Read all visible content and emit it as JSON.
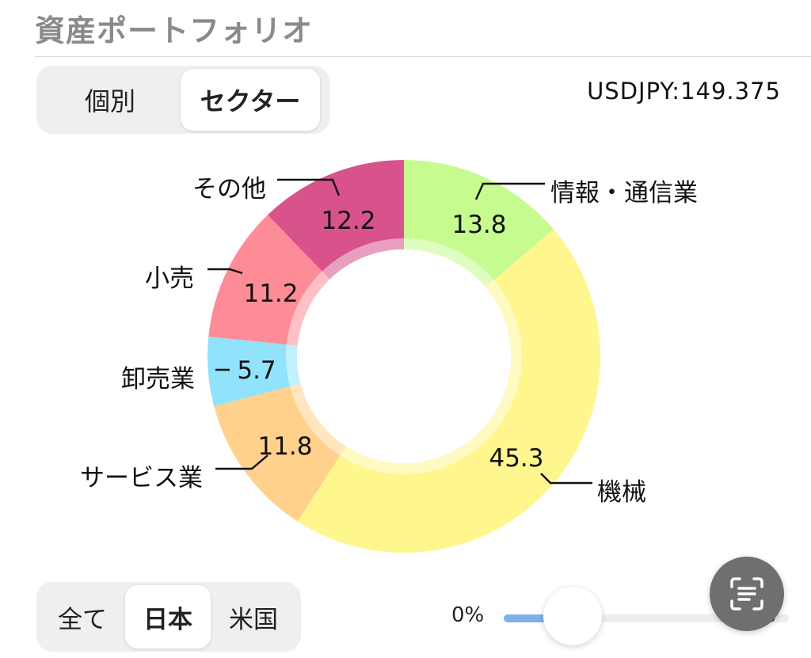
{
  "header": {
    "title": "資産ポートフォリオ"
  },
  "view_toggle": {
    "options": [
      "個別",
      "セクター"
    ],
    "selected": "セクター"
  },
  "exchange_rate": "USDJPY:149.375",
  "region_toggle": {
    "options": [
      "全て",
      "日本",
      "米国"
    ],
    "selected": "日本"
  },
  "slider": {
    "min_label": "0%",
    "max_label": "%",
    "value": 0.2
  },
  "scan_button": {
    "icon": "text-scan-icon"
  },
  "chart_data": {
    "type": "pie",
    "donut": true,
    "slices": [
      {
        "label": "情報・通信業",
        "value": 13.8,
        "color": "#c6fb8f"
      },
      {
        "label": "機械",
        "value": 45.3,
        "color": "#fff68e"
      },
      {
        "label": "サービス業",
        "value": 11.8,
        "color": "#ffd18c"
      },
      {
        "label": "卸売業",
        "value": 5.7,
        "color": "#90e3fb"
      },
      {
        "label": "小売",
        "value": 11.2,
        "color": "#fe8c96"
      },
      {
        "label": "その他",
        "value": 12.2,
        "color": "#d8538c"
      }
    ]
  }
}
